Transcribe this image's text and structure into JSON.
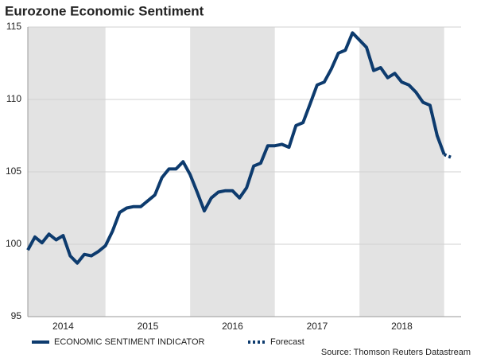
{
  "chart_data": {
    "type": "line",
    "title": "Eurozone Economic Sentiment",
    "source": "Source: Thomson Reuters Datastream",
    "x": [
      2014.083,
      2014.167,
      2014.25,
      2014.333,
      2014.417,
      2014.5,
      2014.583,
      2014.667,
      2014.75,
      2014.833,
      2014.917,
      2015.0,
      2015.083,
      2015.167,
      2015.25,
      2015.333,
      2015.417,
      2015.5,
      2015.583,
      2015.667,
      2015.75,
      2015.833,
      2015.917,
      2016.0,
      2016.083,
      2016.167,
      2016.25,
      2016.333,
      2016.417,
      2016.5,
      2016.583,
      2016.667,
      2016.75,
      2016.833,
      2016.917,
      2017.0,
      2017.083,
      2017.167,
      2017.25,
      2017.333,
      2017.417,
      2017.5,
      2017.583,
      2017.667,
      2017.75,
      2017.833,
      2017.917,
      2018.0,
      2018.083,
      2018.167,
      2018.25,
      2018.333,
      2018.417,
      2018.5,
      2018.583,
      2018.667,
      2018.75,
      2018.833,
      2018.917,
      2019.0
    ],
    "series": [
      {
        "name": "ECONOMIC SENTIMENT INDICATOR",
        "color": "#0d3b6e",
        "style": "solid",
        "values": [
          99.6,
          100.5,
          100.1,
          100.7,
          100.3,
          100.6,
          99.2,
          98.7,
          99.3,
          99.2,
          99.5,
          99.9,
          100.9,
          102.2,
          102.5,
          102.6,
          102.6,
          103.0,
          103.4,
          104.6,
          105.2,
          105.2,
          105.7,
          104.8,
          103.6,
          102.3,
          103.2,
          103.6,
          103.7,
          103.7,
          103.2,
          103.9,
          105.4,
          105.6,
          106.8,
          106.8,
          106.9,
          106.7,
          108.2,
          108.4,
          109.7,
          111.0,
          111.2,
          112.1,
          113.2,
          113.4,
          114.6,
          114.1,
          113.6,
          112.0,
          112.2,
          111.5,
          111.8,
          111.2,
          111.0,
          110.5,
          109.8,
          109.6,
          107.5,
          106.2
        ]
      },
      {
        "name": "Forecast",
        "color": "#0d3b6e",
        "style": "dotted",
        "x": [
          2019.0,
          2019.083
        ],
        "values": [
          106.2,
          106.0
        ]
      }
    ],
    "xlim": [
      2014.083,
      2019.2
    ],
    "xticks": [
      {
        "value": 2014.5,
        "label": "2014"
      },
      {
        "value": 2015.5,
        "label": "2015"
      },
      {
        "value": 2016.5,
        "label": "2016"
      },
      {
        "value": 2017.5,
        "label": "2017"
      },
      {
        "value": 2018.5,
        "label": "2018"
      }
    ],
    "ylim": [
      95,
      115
    ],
    "yticks": [
      95,
      100,
      105,
      110,
      115
    ],
    "grid": true,
    "band_color": "#e3e3e3"
  }
}
